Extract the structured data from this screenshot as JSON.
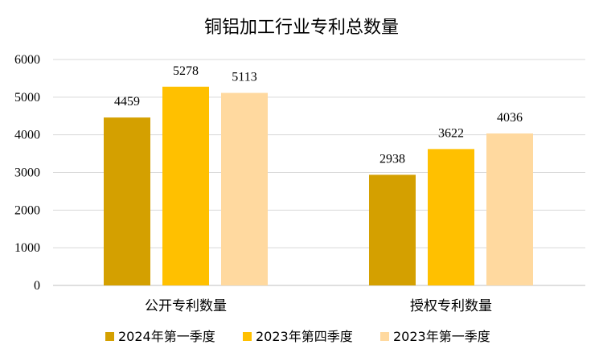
{
  "chart_data": {
    "type": "bar",
    "title": "铜铝加工行业专利总数量",
    "categories": [
      "公开专利数量",
      "授权专利数量"
    ],
    "series": [
      {
        "name": "2024年第一季度",
        "values": [
          4459,
          2938
        ],
        "color": "#D4A000"
      },
      {
        "name": "2023年第四季度",
        "values": [
          5278,
          3622
        ],
        "color": "#FFC000"
      },
      {
        "name": "2023年第一季度",
        "values": [
          5113,
          4036
        ],
        "color": "#FFD99F"
      }
    ],
    "ylim": [
      0,
      6000
    ],
    "yticks": [
      0,
      1000,
      2000,
      3000,
      4000,
      5000,
      6000
    ],
    "grid": true,
    "legend_position": "bottom",
    "xlabel": "",
    "ylabel": ""
  }
}
